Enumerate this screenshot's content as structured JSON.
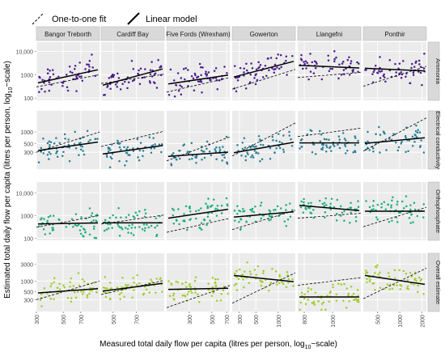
{
  "chart_data": {
    "type": "scatter",
    "legend": {
      "position": "top-left",
      "items": [
        {
          "label": "One-to-one fit",
          "line_style": "dashed"
        },
        {
          "label": "Linear model",
          "line_style": "solid"
        }
      ]
    },
    "xlabel_main": "Measured total daily flow per capita (litres per person, log",
    "xlabel_sub": "10",
    "xlabel_end": "−scale)",
    "ylabel_main": "Estimated total daily flow per capita (litres per person, log",
    "ylabel_sub": "10",
    "ylabel_end": "−scale)",
    "x_scale": "log10",
    "y_scale": "log10",
    "grid": true,
    "columns": [
      {
        "name": "Bangor Treborth",
        "xlim": [
          300,
          1000
        ],
        "ticks": [
          300,
          500,
          700
        ],
        "tick_labels": [
          "300",
          "500",
          "700"
        ]
      },
      {
        "name": "Cardiff Bay",
        "xlim": [
          420,
          1050
        ],
        "ticks": [
          500,
          700
        ],
        "tick_labels": [
          "500",
          "700"
        ]
      },
      {
        "name": "Five Fords (Wrexham)",
        "xlim": [
          180,
          750
        ],
        "ticks": [
          300,
          500,
          700
        ],
        "tick_labels": [
          "300",
          "500",
          "700"
        ]
      },
      {
        "name": "Gowerton",
        "xlim": [
          240,
          1700
        ],
        "ticks": [
          300,
          500,
          1000
        ],
        "tick_labels": [
          "300",
          "500",
          "1000"
        ]
      },
      {
        "name": "Llangefni",
        "xlim": [
          760,
          1250
        ],
        "ticks": [
          800,
          1000
        ],
        "tick_labels": [
          "800",
          "1000"
        ]
      },
      {
        "name": "Ponthir",
        "xlim": [
          320,
          2300
        ],
        "ticks": [
          500,
          1000,
          2000
        ],
        "tick_labels": [
          "500",
          "1000",
          "2000"
        ]
      }
    ],
    "rows": [
      {
        "name": "Ammonia",
        "color": "#4b1d8f",
        "ylim": [
          80,
          25000
        ],
        "ticks": [
          100,
          1000,
          10000
        ],
        "tick_labels": [
          "100",
          "1000",
          "10,000"
        ],
        "fit": [
          [
            0.55,
            0.3
          ],
          [
            0.57,
            0.26
          ],
          [
            0.45,
            0.28
          ],
          [
            0.7,
            0.4
          ],
          [
            0.55,
            0.6
          ],
          [
            0.5,
            0.55
          ]
        ]
      },
      {
        "name": "Electrical conductivity",
        "color": "#2a7f99",
        "ylim": [
          110,
          3500
        ],
        "ticks": [
          300,
          500,
          1000
        ],
        "tick_labels": [
          "300",
          "500",
          "1000"
        ],
        "fit": [
          [
            0.48,
            0.32
          ],
          [
            0.42,
            0.26
          ],
          [
            0.3,
            0.22
          ],
          [
            0.48,
            0.28
          ],
          [
            0.45,
            0.45
          ],
          [
            0.55,
            0.44
          ]
        ]
      },
      {
        "name": "Orthophosphate",
        "color": "#1fae7f",
        "ylim": [
          80,
          30000
        ],
        "ticks": [
          100,
          1000,
          10000
        ],
        "tick_labels": [
          "100",
          "1000",
          "10,000"
        ],
        "fit": [
          [
            0.3,
            0.28
          ],
          [
            0.3,
            0.3
          ],
          [
            0.55,
            0.38
          ],
          [
            0.5,
            0.4
          ],
          [
            0.5,
            0.6
          ],
          [
            0.5,
            0.5
          ]
        ]
      },
      {
        "name": "Overall estimate",
        "color": "#9fce2d",
        "ylim": [
          140,
          6000
        ],
        "ticks": [
          300,
          500,
          1000,
          3000
        ],
        "tick_labels": [
          "300",
          "500",
          "1000",
          "3000"
        ],
        "fit": [
          [
            0.4,
            0.32
          ],
          [
            0.5,
            0.35
          ],
          [
            0.4,
            0.38
          ],
          [
            0.5,
            0.62
          ],
          [
            0.25,
            0.25
          ],
          [
            0.45,
            0.62
          ]
        ]
      }
    ]
  }
}
